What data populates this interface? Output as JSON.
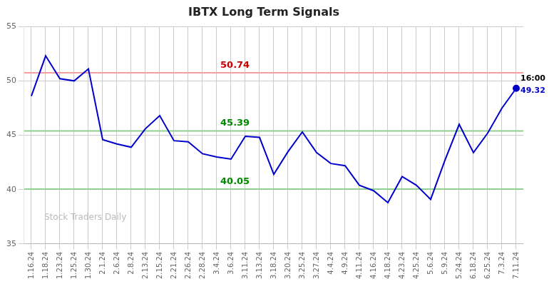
{
  "chart_data": {
    "type": "line",
    "title": "IBTX Long Term Signals",
    "watermark": "Stock Traders Daily",
    "color": "#0000cc",
    "background_color": "#ffffff",
    "grid": true,
    "grid_color": "#cccccc",
    "ylim": [
      35,
      55
    ],
    "yticks": [
      35,
      40,
      45,
      50,
      55
    ],
    "categories": [
      "1.16.24",
      "1.18.24",
      "1.23.24",
      "1.25.24",
      "1.30.24",
      "2.1.24",
      "2.6.24",
      "2.8.24",
      "2.13.24",
      "2.15.24",
      "2.21.24",
      "2.26.24",
      "2.28.24",
      "3.4.24",
      "3.6.24",
      "3.11.24",
      "3.13.24",
      "3.18.24",
      "3.20.24",
      "3.25.24",
      "3.27.24",
      "4.4.24",
      "4.9.24",
      "4.11.24",
      "4.16.24",
      "4.18.24",
      "4.23.24",
      "4.25.24",
      "5.6.24",
      "5.9.24",
      "5.24.24",
      "6.18.24",
      "6.25.24",
      "7.3.24",
      "7.11.24"
    ],
    "values": [
      48.6,
      52.3,
      50.2,
      50.0,
      51.1,
      44.6,
      44.2,
      43.9,
      45.6,
      46.8,
      44.5,
      44.4,
      43.3,
      43.0,
      42.8,
      44.9,
      44.8,
      41.4,
      43.5,
      45.3,
      43.4,
      42.4,
      42.2,
      40.4,
      39.9,
      38.8,
      41.2,
      40.4,
      39.1,
      42.7,
      46.0,
      43.4,
      45.2,
      47.5,
      49.32
    ],
    "hlines": [
      {
        "value": 50.74,
        "label": "50.74",
        "color": "#f4a0a0",
        "label_color": "#cc0000"
      },
      {
        "value": 45.39,
        "label": "45.39",
        "color": "#90d090",
        "label_color": "#008800"
      },
      {
        "value": 40.05,
        "label": "40.05",
        "color": "#90d090",
        "label_color": "#008800"
      }
    ],
    "last_point": {
      "label": "16:00",
      "value": 49.32,
      "value_label": "49.32",
      "color": "#0000cc"
    }
  }
}
